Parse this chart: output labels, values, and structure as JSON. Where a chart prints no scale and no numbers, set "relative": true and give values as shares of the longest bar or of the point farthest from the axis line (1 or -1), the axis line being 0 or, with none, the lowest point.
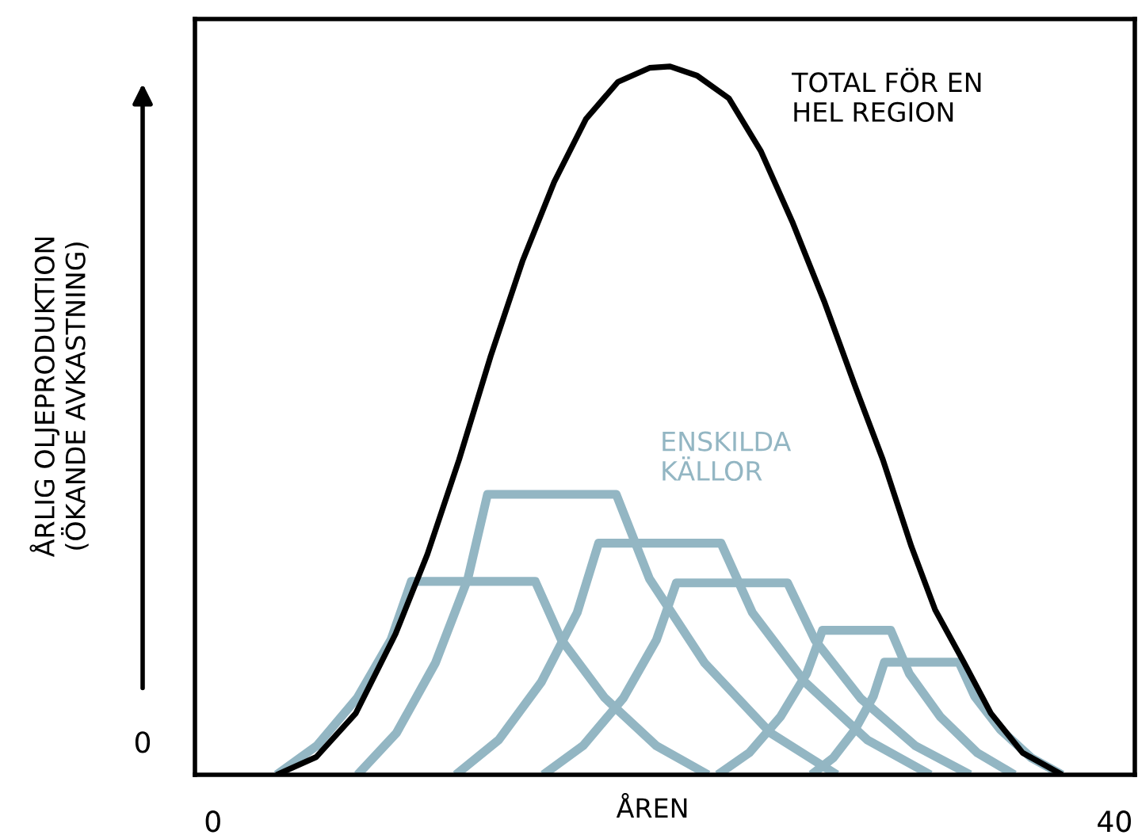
{
  "chart_data": {
    "type": "line",
    "relative": true,
    "xlabel": "ÅREN",
    "ylabel": "ÅRLIG OLJEPRODUKTION\n(ÖKANDE AVKASTNING)",
    "xlim": [
      -0.8,
      40.9
    ],
    "xticks": [
      0,
      40
    ],
    "grid": false,
    "legend": false,
    "marker": "none",
    "line_style": "solid",
    "annotations": [
      "0"
    ],
    "series": [
      {
        "name": "TOTAL FÖR EN\nHEL REGION",
        "color": "#000000",
        "x": [
          2.82,
          4.58,
          6.34,
          8.1,
          9.51,
          10.92,
          12.32,
          13.73,
          15.14,
          16.55,
          17.96,
          19.37,
          20.28,
          21.48,
          22.89,
          24.3,
          25.7,
          27.11,
          28.52,
          29.72,
          30.99,
          32.04,
          33.31,
          34.51,
          35.92,
          37.68
        ],
        "values": [
          0,
          0.025,
          0.087,
          0.199,
          0.311,
          0.445,
          0.591,
          0.725,
          0.837,
          0.926,
          0.978,
          0.998,
          1,
          0.987,
          0.955,
          0.881,
          0.781,
          0.669,
          0.546,
          0.445,
          0.322,
          0.233,
          0.159,
          0.087,
          0.031,
          0
        ]
      },
      {
        "name": "ENSKILDA\nKÄLLOR",
        "color": "#93b6c3",
        "x": [
          2.82,
          4.61,
          6.41,
          7.9,
          8.8,
          14.3,
          15.45,
          17.37,
          19.67,
          21.97
        ],
        "values": [
          0,
          0.041,
          0.109,
          0.191,
          0.273,
          0.273,
          0.191,
          0.109,
          0.041,
          0
        ]
      },
      {
        "color": "#93b6c3",
        "x": [
          6.41,
          8.14,
          9.87,
          11.31,
          12.18,
          17.89,
          19.36,
          21.81,
          24.74,
          27.68
        ],
        "values": [
          0,
          0.059,
          0.158,
          0.277,
          0.396,
          0.396,
          0.277,
          0.158,
          0.059,
          0
        ]
      },
      {
        "color": "#93b6c3",
        "x": [
          10.77,
          12.67,
          14.57,
          16.16,
          17.11,
          22.54,
          23.93,
          26.26,
          29.04,
          31.83
        ],
        "values": [
          0,
          0.049,
          0.131,
          0.229,
          0.327,
          0.327,
          0.229,
          0.131,
          0.049,
          0
        ]
      },
      {
        "color": "#93b6c3",
        "x": [
          14.65,
          16.42,
          18.2,
          19.67,
          20.56,
          25.49,
          26.71,
          28.73,
          31.16,
          33.59
        ],
        "values": [
          0,
          0.041,
          0.108,
          0.19,
          0.271,
          0.271,
          0.19,
          0.108,
          0.041,
          0
        ]
      },
      {
        "color": "#93b6c3",
        "x": [
          22.39,
          23.79,
          25.18,
          26.34,
          27.04,
          30.07,
          30.89,
          32.27,
          33.91,
          35.56
        ],
        "values": [
          0,
          0.031,
          0.082,
          0.143,
          0.204,
          0.204,
          0.143,
          0.082,
          0.031,
          0
        ]
      },
      {
        "color": "#93b6c3",
        "x": [
          26.55,
          27.52,
          28.49,
          29.3,
          29.79,
          33.1,
          33.79,
          34.93,
          36.31,
          37.68
        ],
        "values": [
          0,
          0.024,
          0.064,
          0.111,
          0.159,
          0.159,
          0.111,
          0.064,
          0.024,
          0
        ]
      }
    ]
  }
}
